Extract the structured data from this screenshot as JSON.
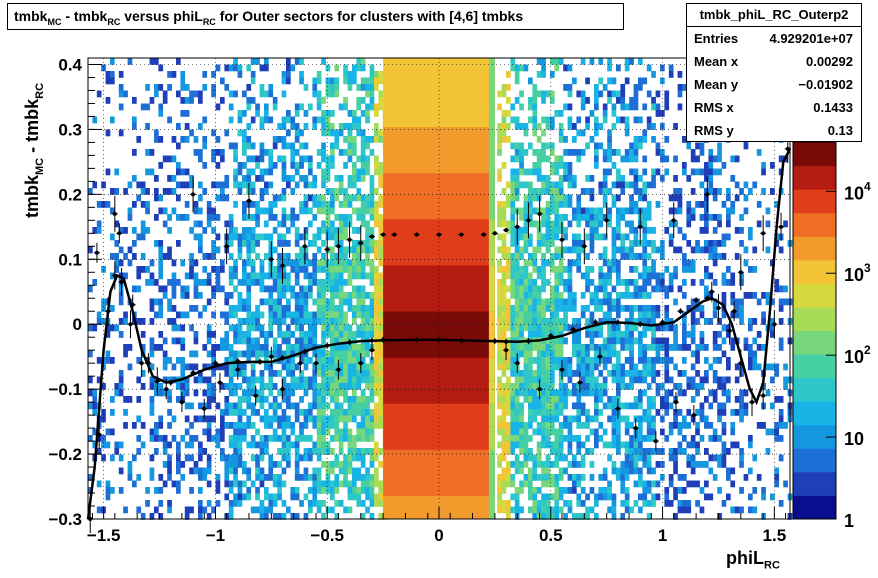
{
  "title_parts": {
    "p1": "tmbk",
    "s1": "MC",
    "p2": " - tmbk",
    "s2": "RC",
    "p3": " versus phiL",
    "s3": "RC",
    "p4": " for Outer sectors for clusters with [4,6] tmbks"
  },
  "stats": {
    "name": "tmbk_phiL_RC_Outerp2",
    "rows": [
      {
        "label": "Entries",
        "value": "4.929201e+07"
      },
      {
        "label": "Mean x",
        "value": "0.00292"
      },
      {
        "label": "Mean y",
        "value": "−0.01902"
      },
      {
        "label": "RMS x",
        "value": "0.1433"
      },
      {
        "label": "RMS y",
        "value": "0.13"
      }
    ]
  },
  "y_label": {
    "main": "tmbk",
    "sub": "MC",
    "mid": " - tmbk",
    "sub2": "RC"
  },
  "x_label": {
    "main": "phiL",
    "sub": "RC"
  },
  "chart_data": {
    "type": "heatmap",
    "xlim": [
      -1.57,
      1.57
    ],
    "ylim": [
      -0.3,
      0.41
    ],
    "x_ticks": [
      {
        "v": -1.5,
        "label": "−1.5"
      },
      {
        "v": -1,
        "label": "−1"
      },
      {
        "v": -0.5,
        "label": "−0.5"
      },
      {
        "v": 0,
        "label": "0"
      },
      {
        "v": 0.5,
        "label": "0.5"
      },
      {
        "v": 1,
        "label": "1"
      },
      {
        "v": 1.5,
        "label": "1.5"
      }
    ],
    "y_ticks": [
      {
        "v": -0.3,
        "label": "−0.3"
      },
      {
        "v": -0.2,
        "label": "−0.2"
      },
      {
        "v": -0.1,
        "label": "−0.1"
      },
      {
        "v": 0,
        "label": "0"
      },
      {
        "v": 0.1,
        "label": "0.1"
      },
      {
        "v": 0.2,
        "label": "0.2"
      },
      {
        "v": 0.3,
        "label": "0.3"
      },
      {
        "v": 0.4,
        "label": "0.4"
      }
    ],
    "grid": true,
    "z_scale": "log",
    "z_range": [
      1,
      40000
    ],
    "z_ticks": [
      {
        "v": 1,
        "label": "1"
      },
      {
        "v": 10,
        "label": "10"
      },
      {
        "v": 100,
        "label": "10",
        "sup": "2"
      },
      {
        "v": 1000,
        "label": "10",
        "sup": "3"
      },
      {
        "v": 10000,
        "label": "10",
        "sup": "4"
      }
    ],
    "palette": [
      "#0b0d8f",
      "#1f3fb8",
      "#1d6fd6",
      "#1597e0",
      "#18b4e6",
      "#2dc7c9",
      "#46cfa3",
      "#78d77a",
      "#a8dc56",
      "#d6d840",
      "#f3c435",
      "#f29b2c",
      "#ef6e24",
      "#e03e1b",
      "#b41b11",
      "#7a0a07"
    ],
    "core_band": {
      "x": [
        -0.25,
        0.25
      ],
      "y": [
        -0.3,
        0.41
      ]
    },
    "profile_lower": {
      "x": [
        -1.56,
        -1.52,
        -1.48,
        -1.45,
        -1.42,
        -1.38,
        -1.33,
        -1.26,
        -1.2,
        -1.1,
        -1.0,
        -0.9,
        -0.8,
        -0.7,
        -0.6,
        -0.5,
        -0.4,
        -0.3,
        -0.25,
        -0.1,
        0,
        0.1,
        0.25,
        0.3,
        0.4,
        0.5,
        0.6,
        0.7,
        0.8,
        0.9,
        1.0,
        1.08,
        1.15,
        1.2,
        1.25,
        1.3,
        1.35,
        1.4,
        1.45,
        1.5,
        1.53,
        1.56
      ],
      "y": [
        -0.3,
        -0.17,
        0.02,
        0.075,
        0.065,
        0.0,
        -0.06,
        -0.088,
        -0.09,
        -0.075,
        -0.06,
        -0.057,
        -0.058,
        -0.052,
        -0.042,
        -0.033,
        -0.028,
        -0.025,
        -0.024,
        -0.024,
        -0.024,
        -0.025,
        -0.026,
        -0.027,
        -0.026,
        -0.018,
        -0.008,
        0.003,
        0.003,
        0.0,
        0.003,
        0.02,
        0.037,
        0.04,
        0.025,
        -0.01,
        -0.06,
        -0.12,
        -0.11,
        0.0,
        0.15,
        0.27
      ]
    },
    "profile_upper": {
      "x": [
        -1.45,
        -1.1,
        -0.95,
        -0.85,
        -0.75,
        -0.7,
        -0.6,
        -0.5,
        -0.45,
        -0.4,
        -0.35,
        -0.3,
        -0.25,
        -0.2,
        -0.1,
        0,
        0.1,
        0.2,
        0.25,
        0.3,
        0.35,
        0.4,
        0.45,
        0.55,
        0.65,
        0.75,
        0.9,
        1.05,
        1.2,
        1.35,
        1.45
      ],
      "y": [
        0.17,
        0.2,
        0.12,
        0.19,
        0.1,
        0.09,
        0.12,
        0.115,
        0.12,
        0.13,
        0.125,
        0.135,
        0.138,
        0.138,
        0.138,
        0.138,
        0.138,
        0.138,
        0.14,
        0.145,
        0.15,
        0.16,
        0.17,
        0.13,
        0.12,
        0.16,
        0.15,
        0.16,
        0.2,
        0.08,
        0.14
      ]
    },
    "scatter_points": {
      "x": [
        -1.53,
        -1.43,
        -1.37,
        -1.3,
        -1.22,
        -1.15,
        -1.05,
        -0.98,
        -0.9,
        -0.82,
        -0.75,
        -0.7,
        -0.62,
        -0.55,
        -0.45,
        -0.35,
        -0.3,
        0.3,
        0.35,
        0.45,
        0.55,
        0.63,
        0.72,
        0.8,
        0.88,
        0.97,
        1.06,
        1.14,
        1.22,
        1.32
      ],
      "y": [
        0.11,
        0.14,
        0.03,
        -0.06,
        -0.1,
        -0.12,
        -0.13,
        -0.09,
        -0.07,
        -0.11,
        -0.05,
        -0.1,
        -0.06,
        -0.06,
        -0.07,
        -0.06,
        -0.04,
        -0.04,
        -0.06,
        -0.1,
        -0.07,
        -0.09,
        -0.05,
        -0.13,
        -0.16,
        -0.18,
        -0.12,
        -0.14,
        0.05,
        0.02
      ]
    },
    "fit_curve": {
      "x": [
        -1.57,
        -1.54,
        -1.5,
        -1.47,
        -1.44,
        -1.41,
        -1.37,
        -1.33,
        -1.28,
        -1.22,
        -1.15,
        -1.05,
        -0.95,
        -0.85,
        -0.75,
        -0.65,
        -0.55,
        -0.45,
        -0.35,
        -0.25,
        -0.1,
        0,
        0.1,
        0.25,
        0.35,
        0.45,
        0.55,
        0.65,
        0.75,
        0.85,
        0.95,
        1.05,
        1.12,
        1.18,
        1.22,
        1.27,
        1.31,
        1.35,
        1.39,
        1.42,
        1.45,
        1.48,
        1.51,
        1.54,
        1.57
      ],
      "y": [
        -0.3,
        -0.22,
        -0.04,
        0.05,
        0.075,
        0.07,
        0.02,
        -0.04,
        -0.08,
        -0.09,
        -0.085,
        -0.07,
        -0.06,
        -0.058,
        -0.058,
        -0.048,
        -0.036,
        -0.03,
        -0.026,
        -0.025,
        -0.024,
        -0.024,
        -0.025,
        -0.026,
        -0.027,
        -0.025,
        -0.018,
        -0.006,
        0.003,
        0.002,
        -0.002,
        0.003,
        0.02,
        0.035,
        0.04,
        0.03,
        0.0,
        -0.05,
        -0.1,
        -0.12,
        -0.09,
        0.02,
        0.15,
        0.25,
        0.27
      ]
    }
  }
}
